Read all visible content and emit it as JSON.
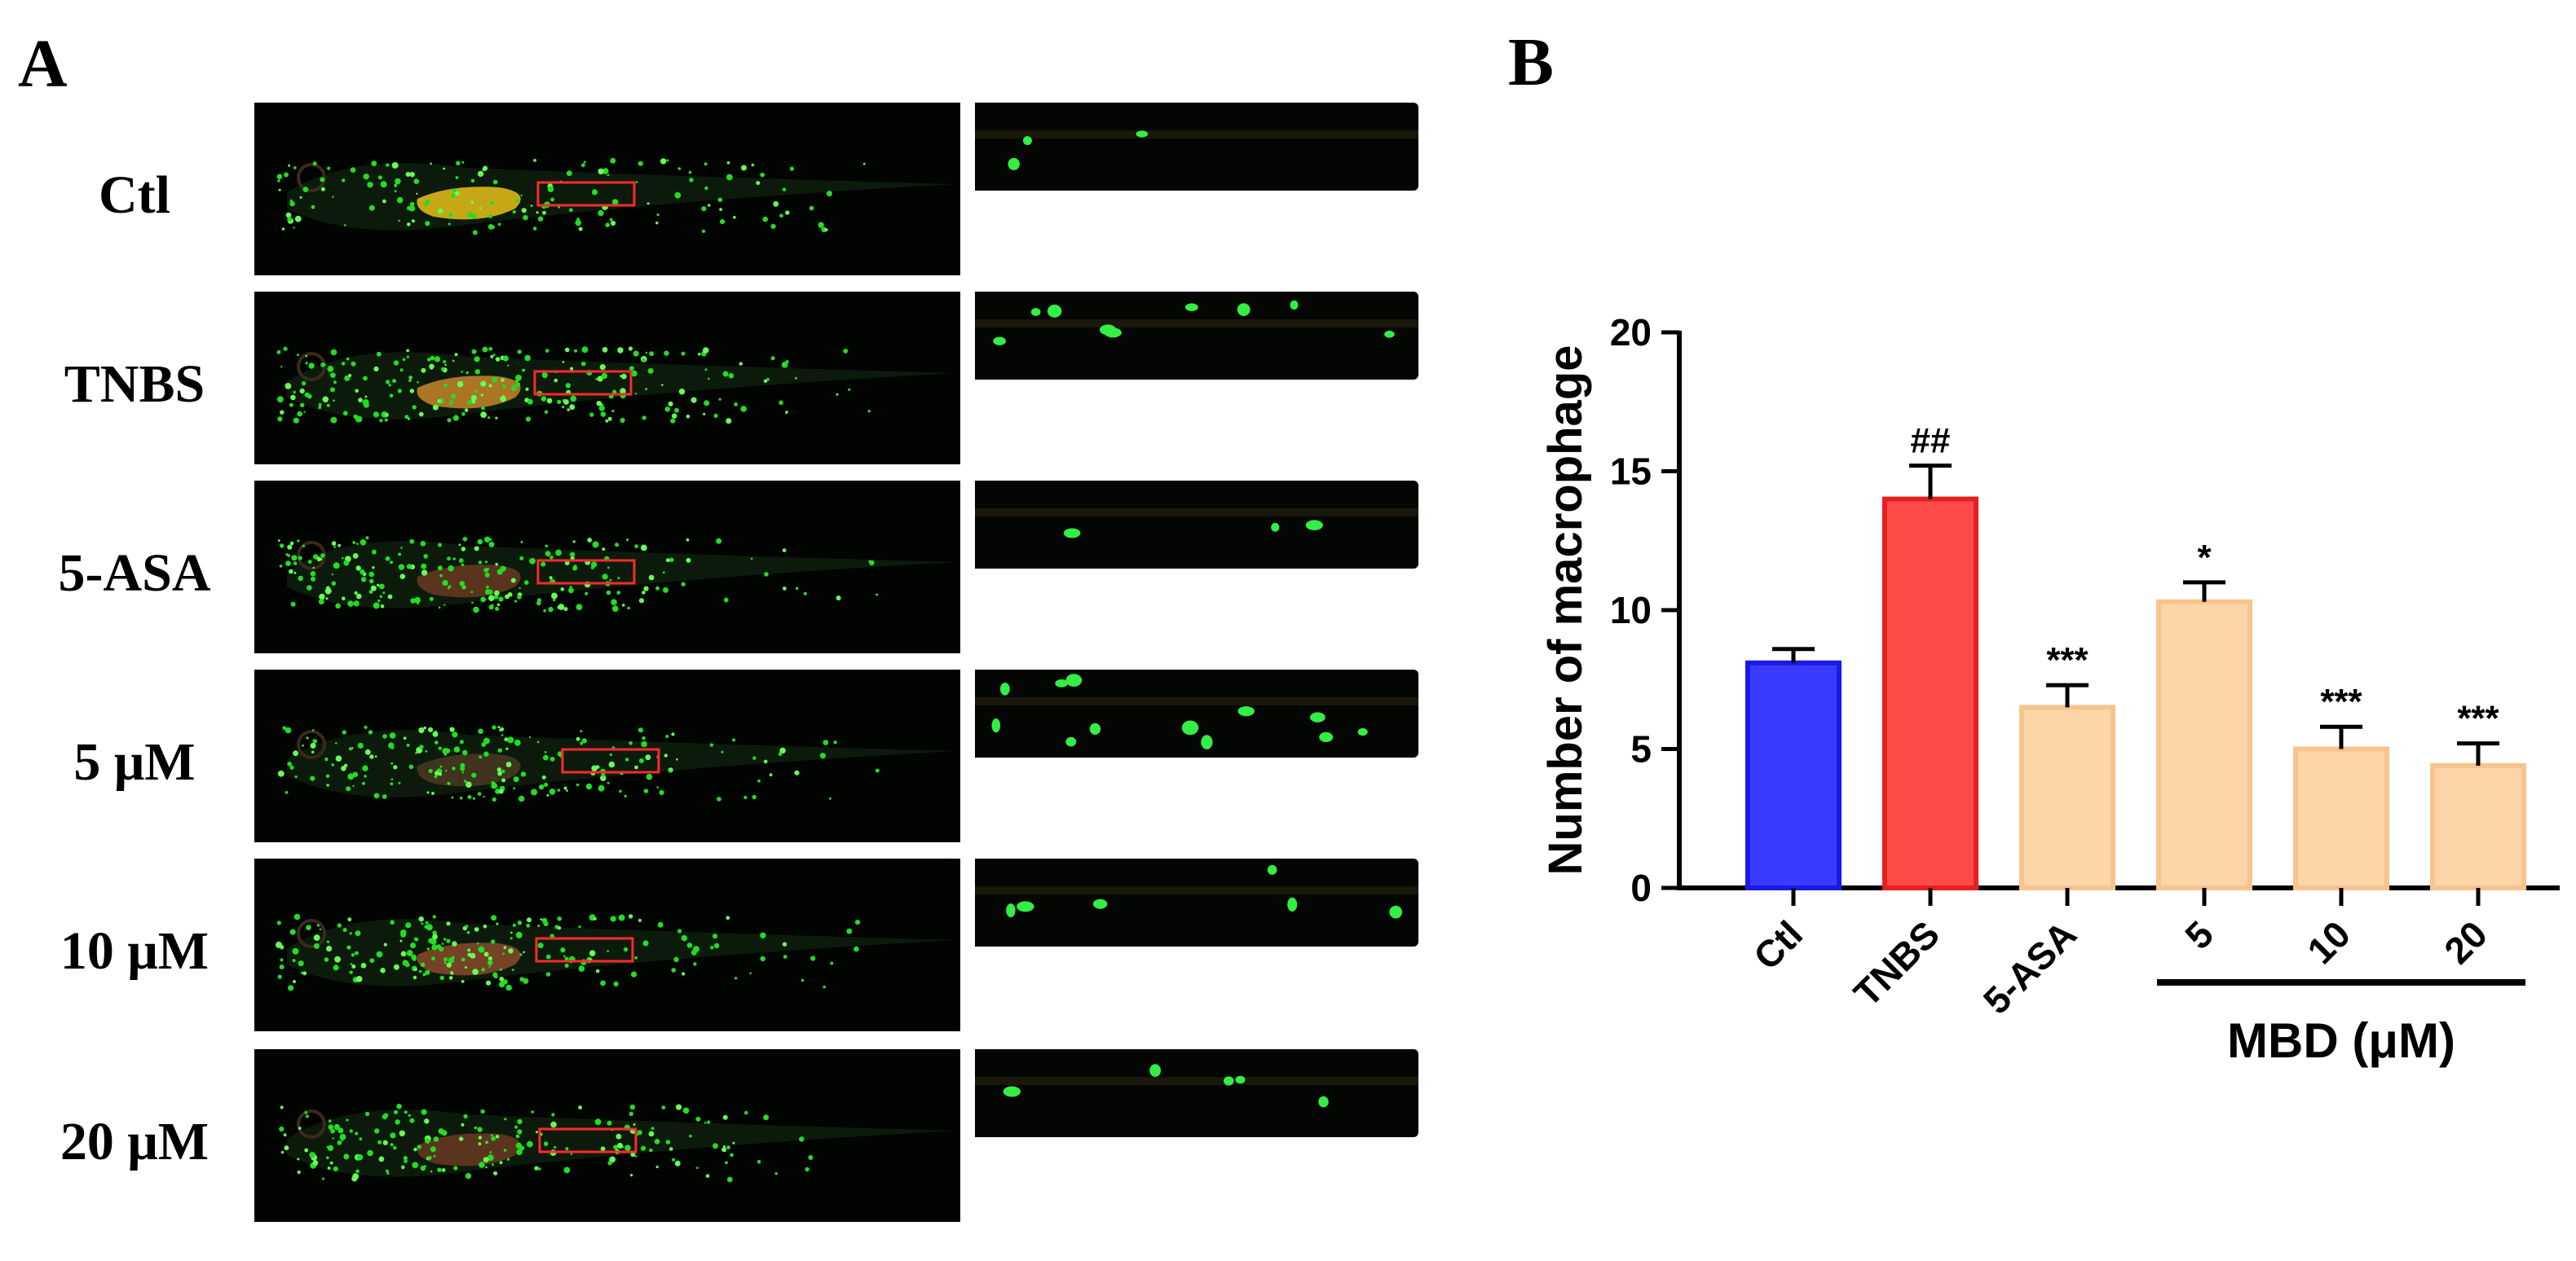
{
  "panels": {
    "a_label": "A",
    "b_label": "B"
  },
  "image_rows": [
    {
      "label": "Ctl",
      "fish_color": "#e8c21a",
      "dot_density": 38,
      "zoom_cells": 3
    },
    {
      "label": "TNBS",
      "fish_color": "#c8862a",
      "dot_density": 60,
      "zoom_cells": 9
    },
    {
      "label": "5-ASA",
      "fish_color": "#6a3a22",
      "dot_density": 55,
      "zoom_cells": 3
    },
    {
      "label": "5 μM",
      "fish_color": "#4a3a22",
      "dot_density": 50,
      "zoom_cells": 12
    },
    {
      "label": "10 μM",
      "fish_color": "#8a4a2a",
      "dot_density": 52,
      "zoom_cells": 6
    },
    {
      "label": "20 μM",
      "fish_color": "#6a3a22",
      "dot_density": 48,
      "zoom_cells": 5
    }
  ],
  "chart_data": {
    "type": "bar",
    "ylabel": "Number of macrophage",
    "ylim": [
      0,
      20
    ],
    "yticks": [
      0,
      5,
      10,
      15,
      20
    ],
    "categories": [
      "Ctl",
      "TNBS",
      "5-ASA",
      "5",
      "10",
      "20"
    ],
    "values": [
      8.1,
      14.0,
      6.5,
      10.3,
      5.0,
      4.4
    ],
    "errors": [
      0.5,
      1.2,
      0.8,
      0.7,
      0.8,
      0.8
    ],
    "significance": [
      "",
      "##",
      "***",
      "*",
      "***",
      "***"
    ],
    "fill_colors": [
      "#3b3bff",
      "#ff4a4a",
      "#fcd5a8",
      "#fcd5a8",
      "#fcd5a8",
      "#fcd5a8"
    ],
    "edge_colors": [
      "#1a1ae6",
      "#e62020",
      "#f8c48e",
      "#f8c48e",
      "#f8c48e",
      "#f8c48e"
    ],
    "group_label": "MBD (μM)",
    "group_categories": [
      "5",
      "10",
      "20"
    ]
  }
}
